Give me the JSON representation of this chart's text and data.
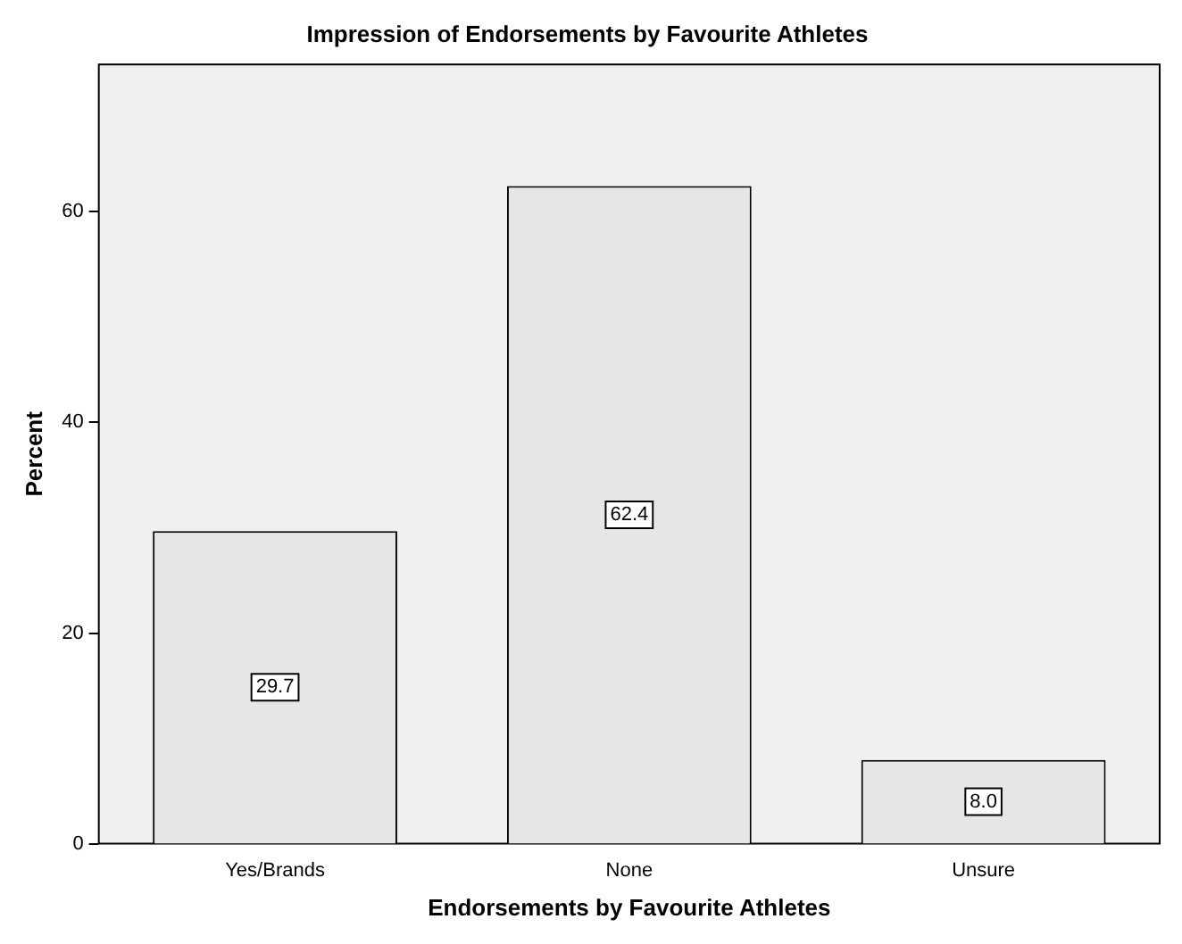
{
  "chart_data": {
    "type": "bar",
    "title": "Impression of Endorsements by Favourite Athletes",
    "xlabel": "Endorsements by Favourite Athletes",
    "ylabel": "Percent",
    "categories": [
      "Yes/Brands",
      "None",
      "Unsure"
    ],
    "values": [
      29.7,
      62.4,
      8.0
    ],
    "value_labels": [
      "29.7",
      "62.4",
      "8.0"
    ],
    "color": "#e6e6e6",
    "ylim": [
      0,
      74
    ],
    "yticks": [
      0,
      20,
      40,
      60
    ],
    "grid": false,
    "legend": false
  }
}
